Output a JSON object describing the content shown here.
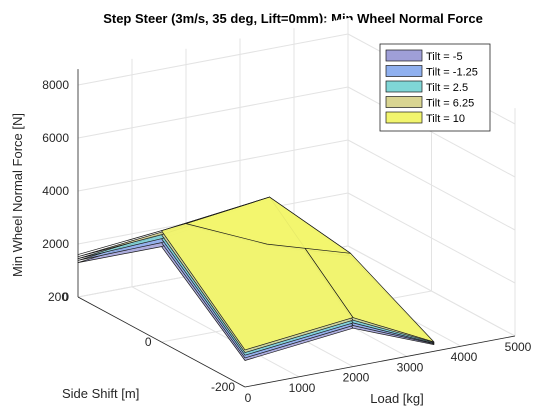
{
  "chart_data": {
    "type": "surface",
    "title": "Step Steer (3m/s, 35 deg, Lift=0mm): Min Wheel Normal Force",
    "xlabel": "Load [kg]",
    "ylabel": "Side Shift [m]",
    "zlabel": "Min Wheel Normal Force [N]",
    "xlim": [
      0,
      5000
    ],
    "ylim": [
      -200,
      200
    ],
    "zlim": [
      0,
      8600
    ],
    "xticks": [
      "0",
      "1000",
      "2000",
      "3000",
      "4000",
      "5000"
    ],
    "yticks": [
      "-200",
      "0",
      "200"
    ],
    "zticks": [
      "0",
      "2000",
      "4000",
      "6000",
      "8000"
    ],
    "x": [
      0,
      2000,
      3500
    ],
    "y": [
      -200,
      0,
      200
    ],
    "legend_position": "top-right",
    "series": [
      {
        "name": "Tilt = -5",
        "color": "#9f9fd8",
        "values": [
          [
            1000,
            1450,
            250
          ],
          [
            3600,
            4300,
            1600
          ],
          [
            1300,
            1800,
            500
          ]
        ]
      },
      {
        "name": "Tilt = -1.25",
        "color": "#8fb0ef",
        "values": [
          [
            1100,
            1550,
            280
          ],
          [
            3750,
            4400,
            1700
          ],
          [
            1380,
            1850,
            540
          ]
        ]
      },
      {
        "name": "Tilt = 2.5",
        "color": "#7fd6d6",
        "values": [
          [
            1200,
            1650,
            300
          ],
          [
            3900,
            4500,
            1800
          ],
          [
            1450,
            1900,
            580
          ]
        ]
      },
      {
        "name": "Tilt = 6.25",
        "color": "#d9d592",
        "values": [
          [
            1300,
            1750,
            330
          ],
          [
            4050,
            4600,
            1900
          ],
          [
            1520,
            1950,
            620
          ]
        ]
      },
      {
        "name": "Tilt = 10",
        "color": "#f2f56e",
        "values": [
          [
            1400,
            1850,
            350
          ],
          [
            4200,
            4700,
            2000
          ],
          [
            1600,
            2000,
            650
          ]
        ]
      }
    ]
  }
}
